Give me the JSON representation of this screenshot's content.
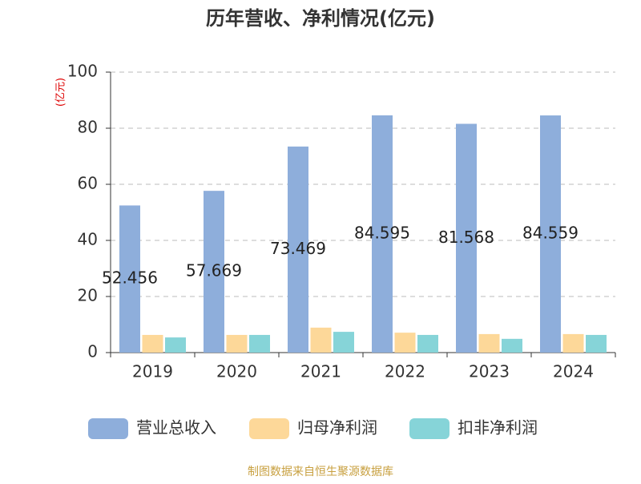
{
  "chart_data": {
    "type": "bar",
    "title": "历年营收、净利情况(亿元)",
    "y_unit": "(亿元)",
    "source": "制图数据来自恒生聚源数据库",
    "categories": [
      "2019",
      "2020",
      "2021",
      "2022",
      "2023",
      "2024"
    ],
    "series": [
      {
        "name": "营业总收入",
        "color": "#8eaedb",
        "values": [
          52.456,
          57.669,
          73.469,
          84.595,
          81.568,
          84.559
        ],
        "show_labels": true
      },
      {
        "name": "归母净利润",
        "color": "#fdd899",
        "values": [
          6.3,
          6.3,
          8.9,
          7.1,
          6.6,
          6.6
        ]
      },
      {
        "name": "扣非净利润",
        "color": "#86d4d8",
        "values": [
          5.4,
          6.3,
          7.4,
          6.3,
          4.9,
          6.3
        ]
      }
    ],
    "ylim": [
      0,
      100
    ],
    "yticks": [
      0,
      20,
      40,
      60,
      80,
      100
    ],
    "grid": true
  }
}
